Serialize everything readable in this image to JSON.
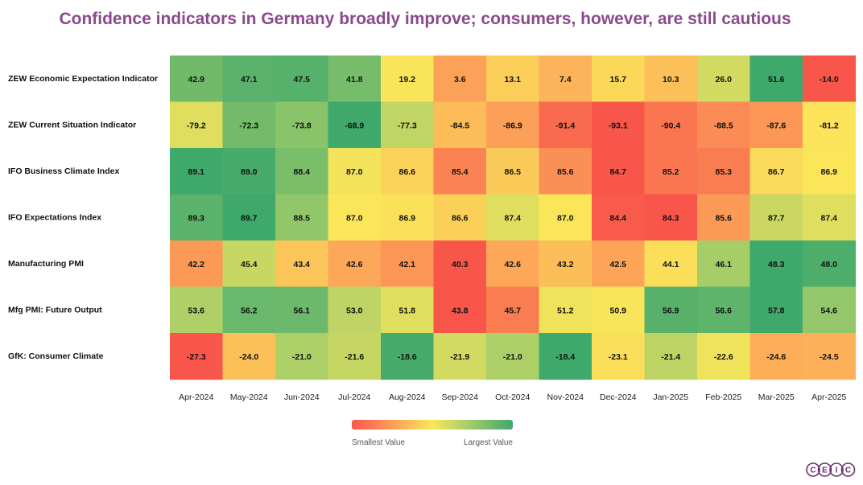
{
  "chart_data": {
    "type": "heatmap",
    "title": "Confidence indicators in Germany broadly improve; consumers, however, are still cautious",
    "columns": [
      "Apr-2024",
      "May-2024",
      "Jun-2024",
      "Jul-2024",
      "Aug-2024",
      "Sep-2024",
      "Oct-2024",
      "Nov-2024",
      "Dec-2024",
      "Jan-2025",
      "Feb-2025",
      "Mar-2025",
      "Apr-2025"
    ],
    "rows": [
      {
        "name": "ZEW Economic Expectation Indicator",
        "values": [
          "42.9",
          "47.1",
          "47.5",
          "41.8",
          "19.2",
          "3.6",
          "13.1",
          "7.4",
          "15.7",
          "10.3",
          "26.0",
          "51.6",
          "-14.0"
        ]
      },
      {
        "name": "ZEW Current Situation Indicator",
        "values": [
          "-79.2",
          "-72.3",
          "-73.8",
          "-68.9",
          "-77.3",
          "-84.5",
          "-86.9",
          "-91.4",
          "-93.1",
          "-90.4",
          "-88.5",
          "-87.6",
          "-81.2"
        ]
      },
      {
        "name": "IFO Business Climate Index",
        "values": [
          "89.1",
          "89.0",
          "88.4",
          "87.0",
          "86.6",
          "85.4",
          "86.5",
          "85.6",
          "84.7",
          "85.2",
          "85.3",
          "86.7",
          "86.9"
        ]
      },
      {
        "name": "IFO Expectations Index",
        "values": [
          "89.3",
          "89.7",
          "88.5",
          "87.0",
          "86.9",
          "86.6",
          "87.4",
          "87.0",
          "84.4",
          "84.3",
          "85.6",
          "87.7",
          "87.4"
        ]
      },
      {
        "name": "Manufacturing PMI",
        "values": [
          "42.2",
          "45.4",
          "43.4",
          "42.6",
          "42.1",
          "40.3",
          "42.6",
          "43.2",
          "42.5",
          "44.1",
          "46.1",
          "48.3",
          "48.0"
        ]
      },
      {
        "name": "Mfg PMI: Future Output",
        "values": [
          "53.6",
          "56.2",
          "56.1",
          "53.0",
          "51.8",
          "43.8",
          "45.7",
          "51.2",
          "50.9",
          "56.9",
          "56.6",
          "57.8",
          "54.6"
        ]
      },
      {
        "name": "GfK: Consumer Climate",
        "values": [
          "-27.3",
          "-24.0",
          "-21.0",
          "-21.6",
          "-18.6",
          "-21.9",
          "-21.0",
          "-18.4",
          "-23.1",
          "-21.4",
          "-22.6",
          "-24.6",
          "-24.5"
        ]
      }
    ],
    "color_scale": {
      "low": "#f8564b",
      "mid_low": "#fc9d58",
      "mid": "#fbe65a",
      "mid_high": "#9cca6a",
      "high": "#3fa86b",
      "legend_low_label": "Smallest Value",
      "legend_high_label": "Largest Value"
    }
  },
  "logo": {
    "letters": [
      "C",
      "E",
      "I",
      "C"
    ],
    "color": "#6b2d6e"
  }
}
